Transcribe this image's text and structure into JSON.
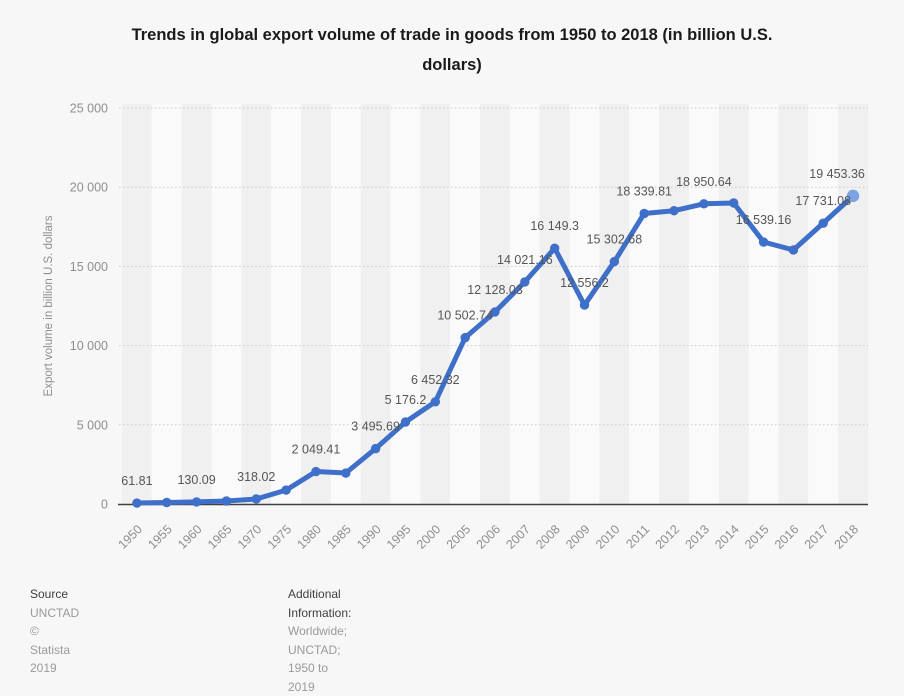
{
  "page": {
    "title_lines": [
      "Trends in global export volume of trade in goods from 1950 to 2018 (in billion U.S.",
      "dollars)"
    ]
  },
  "footer": {
    "source_heading": "Source",
    "source_name": "UNCTAD",
    "copyright": "© Statista 2019",
    "additional_heading": "Additional Information:",
    "additional_text": "Worldwide; UNCTAD; 1950 to 2019"
  },
  "chart_data": {
    "type": "line",
    "title": "Trends in global export volume of trade in goods from 1950 to 2018 (in billion U.S. dollars)",
    "xlabel": "",
    "ylabel": "Export volume in billion U.S. dollars",
    "ylim": [
      0,
      25000
    ],
    "grid": "horizontal-dotted",
    "legend": "none",
    "line_color": "#3e6fc9",
    "endpoint_color": "#7ba3e3",
    "yticks": [
      {
        "value": 0,
        "label": "0"
      },
      {
        "value": 5000,
        "label": "5 000"
      },
      {
        "value": 10000,
        "label": "10 000"
      },
      {
        "value": 15000,
        "label": "15 000"
      },
      {
        "value": 20000,
        "label": "20 000"
      },
      {
        "value": 25000,
        "label": "25 000"
      }
    ],
    "categories": [
      "1950",
      "1955",
      "1960",
      "1965",
      "1970",
      "1975",
      "1980",
      "1985",
      "1990",
      "1995",
      "2000",
      "2005",
      "2006",
      "2007",
      "2008",
      "2009",
      "2010",
      "2011",
      "2012",
      "2013",
      "2014",
      "2015",
      "2016",
      "2017",
      "2018"
    ],
    "values": [
      61.81,
      95,
      130.09,
      190,
      318.02,
      877,
      2049.41,
      1954,
      3495.69,
      5176.2,
      6452.32,
      10502.74,
      12128.03,
      14021.16,
      16149.3,
      12556.2,
      15302.68,
      18339.81,
      18514,
      18950.64,
      19005,
      16539.16,
      16038,
      17731.08,
      19453.36
    ],
    "point_labels": [
      "61.81",
      "",
      "130.09",
      "",
      "318.02",
      "",
      "2 049.41",
      "",
      "3 495.69",
      "5 176.2",
      "6 452.32",
      "10 502.74",
      "12 128.03",
      "14 021.16",
      "16 149.3",
      "12 556.2",
      "15 302.68",
      "18 339.81",
      "",
      "18 950.64",
      "",
      "16 539.16",
      "",
      "17 731.08",
      "19 453.36"
    ]
  }
}
